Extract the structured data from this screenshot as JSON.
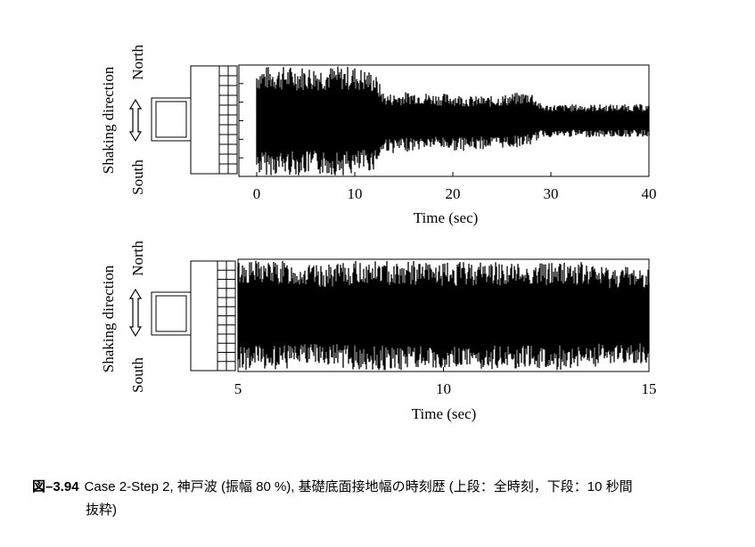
{
  "charts": [
    {
      "ylabel": "Shaking direction",
      "north_label": "North",
      "south_label": "South",
      "xlabel": "Time (sec)",
      "xlim": [
        0,
        40
      ],
      "ticks": [
        0,
        10,
        20,
        30,
        40
      ],
      "tick_labels": [
        "0",
        "10",
        "20",
        "30",
        "40"
      ]
    },
    {
      "ylabel": "Shaking direction",
      "north_label": "North",
      "south_label": "South",
      "xlabel": "Time (sec)",
      "xlim": [
        5,
        15
      ],
      "ticks": [
        5,
        10,
        15
      ],
      "tick_labels": [
        "5",
        "10",
        "15"
      ]
    }
  ],
  "chart_data": [
    {
      "type": "line",
      "xlabel": "Time (sec)",
      "ylabel": "Shaking direction",
      "xlim": [
        0,
        40
      ],
      "ylim": [
        -1,
        1
      ],
      "envelope": {
        "x": [
          0,
          2,
          5,
          7,
          8,
          10,
          12,
          13,
          14,
          16,
          18,
          20,
          22,
          24,
          26,
          28,
          29,
          30,
          35,
          40
        ],
        "upper": [
          1.0,
          1.0,
          1.0,
          1.0,
          1.0,
          1.0,
          0.9,
          0.5,
          0.5,
          0.55,
          0.5,
          0.5,
          0.45,
          0.45,
          0.5,
          0.55,
          0.3,
          0.3,
          0.3,
          0.3
        ],
        "lower": [
          -1.0,
          -1.0,
          -1.0,
          -1.0,
          -1.0,
          -1.0,
          -0.9,
          -0.55,
          -0.6,
          -0.55,
          -0.5,
          -0.55,
          -0.55,
          -0.5,
          -0.5,
          -0.45,
          -0.3,
          -0.3,
          -0.3,
          -0.3
        ]
      }
    },
    {
      "type": "line",
      "xlabel": "Time (sec)",
      "ylabel": "Shaking direction",
      "xlim": [
        5,
        15
      ],
      "ylim": [
        -1,
        1
      ],
      "envelope": {
        "x": [
          5,
          6,
          7,
          8,
          9,
          10,
          11,
          12,
          13,
          14,
          15
        ],
        "upper": [
          1.0,
          1.0,
          0.9,
          1.0,
          1.0,
          0.95,
          1.0,
          0.95,
          1.0,
          0.9,
          0.9
        ],
        "lower": [
          -1.0,
          -1.0,
          -0.9,
          -1.0,
          -1.0,
          -0.95,
          -1.0,
          -0.95,
          -1.0,
          -0.9,
          -0.9
        ]
      }
    }
  ],
  "caption": {
    "number": "図–3.94",
    "line1": "Case 2-Step 2, 神戸波 (振幅 80 %), 基礎底面接地幅の時刻歴 (上段：全時刻，下段：10 秒間",
    "line2": "抜粋)"
  }
}
